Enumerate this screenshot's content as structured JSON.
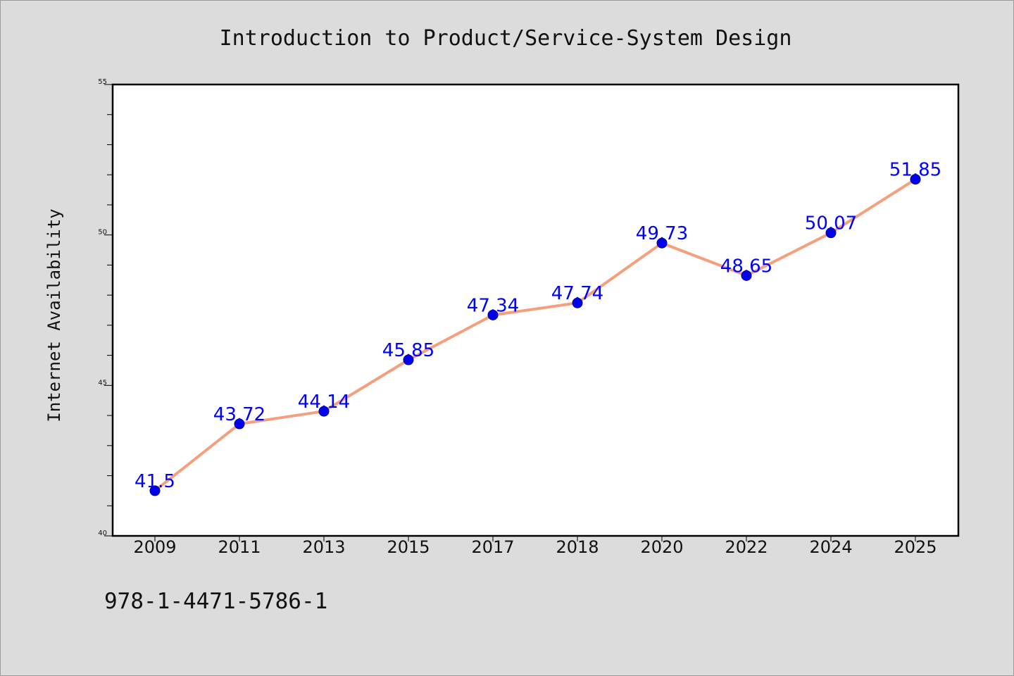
{
  "title": "Introduction to Product/Service-System Design",
  "isbn": "978-1-4471-5786-1",
  "colors": {
    "background": "#dcdcdc",
    "plot_background": "#ffffff",
    "line": "#f4a07e",
    "marker": "#0000ee",
    "data_label": "#0000ff"
  },
  "chart_data": {
    "type": "line",
    "title": "Introduction to Product/Service-System Design",
    "xlabel": "",
    "ylabel": "Internet Availability",
    "categories": [
      "2009",
      "2011",
      "2013",
      "2015",
      "2017",
      "2018",
      "2020",
      "2022",
      "2024",
      "2025"
    ],
    "values": [
      41.5,
      43.72,
      44.14,
      45.85,
      47.34,
      47.74,
      49.73,
      48.65,
      50.07,
      51.85
    ],
    "data_labels": [
      "41.5",
      "43.72",
      "44.14",
      "45.85",
      "47.34",
      "47.74",
      "49.73",
      "48.65",
      "50.07",
      "51.85"
    ],
    "ylim": [
      40,
      55
    ],
    "yticks": [
      "40",
      "45",
      "50",
      "55"
    ],
    "grid": false,
    "legend": false
  }
}
